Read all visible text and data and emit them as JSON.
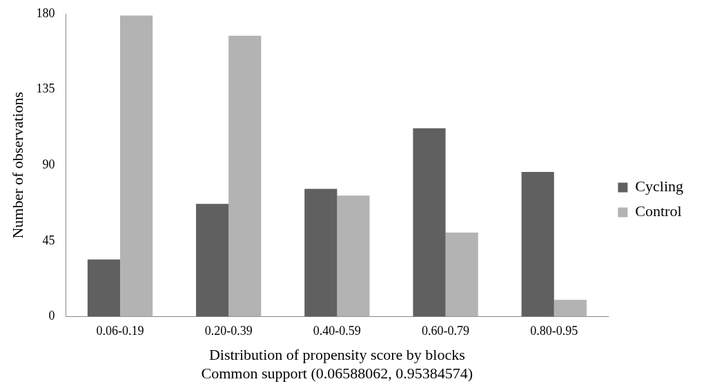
{
  "chart_data": {
    "type": "bar",
    "xlabel": "Distribution of propensity score by blocks",
    "ylabel": "Number of observations",
    "annotations": [
      "Common support (0.06588062, 0.95384574)"
    ],
    "categories": [
      "0.06-0.19",
      "0.20-0.39",
      "0.40-0.59",
      "0.60-0.79",
      "0.80-0.95"
    ],
    "series": [
      {
        "name": "Cycling",
        "color": "#606060",
        "values": [
          34,
          67,
          76,
          112,
          86
        ]
      },
      {
        "name": "Control",
        "color": "#b3b3b3",
        "values": [
          179,
          167,
          72,
          50,
          10
        ]
      }
    ],
    "ylim": [
      0,
      180
    ],
    "yticks": [
      0,
      45,
      90,
      135,
      180
    ],
    "grid": false,
    "legend": "right"
  }
}
